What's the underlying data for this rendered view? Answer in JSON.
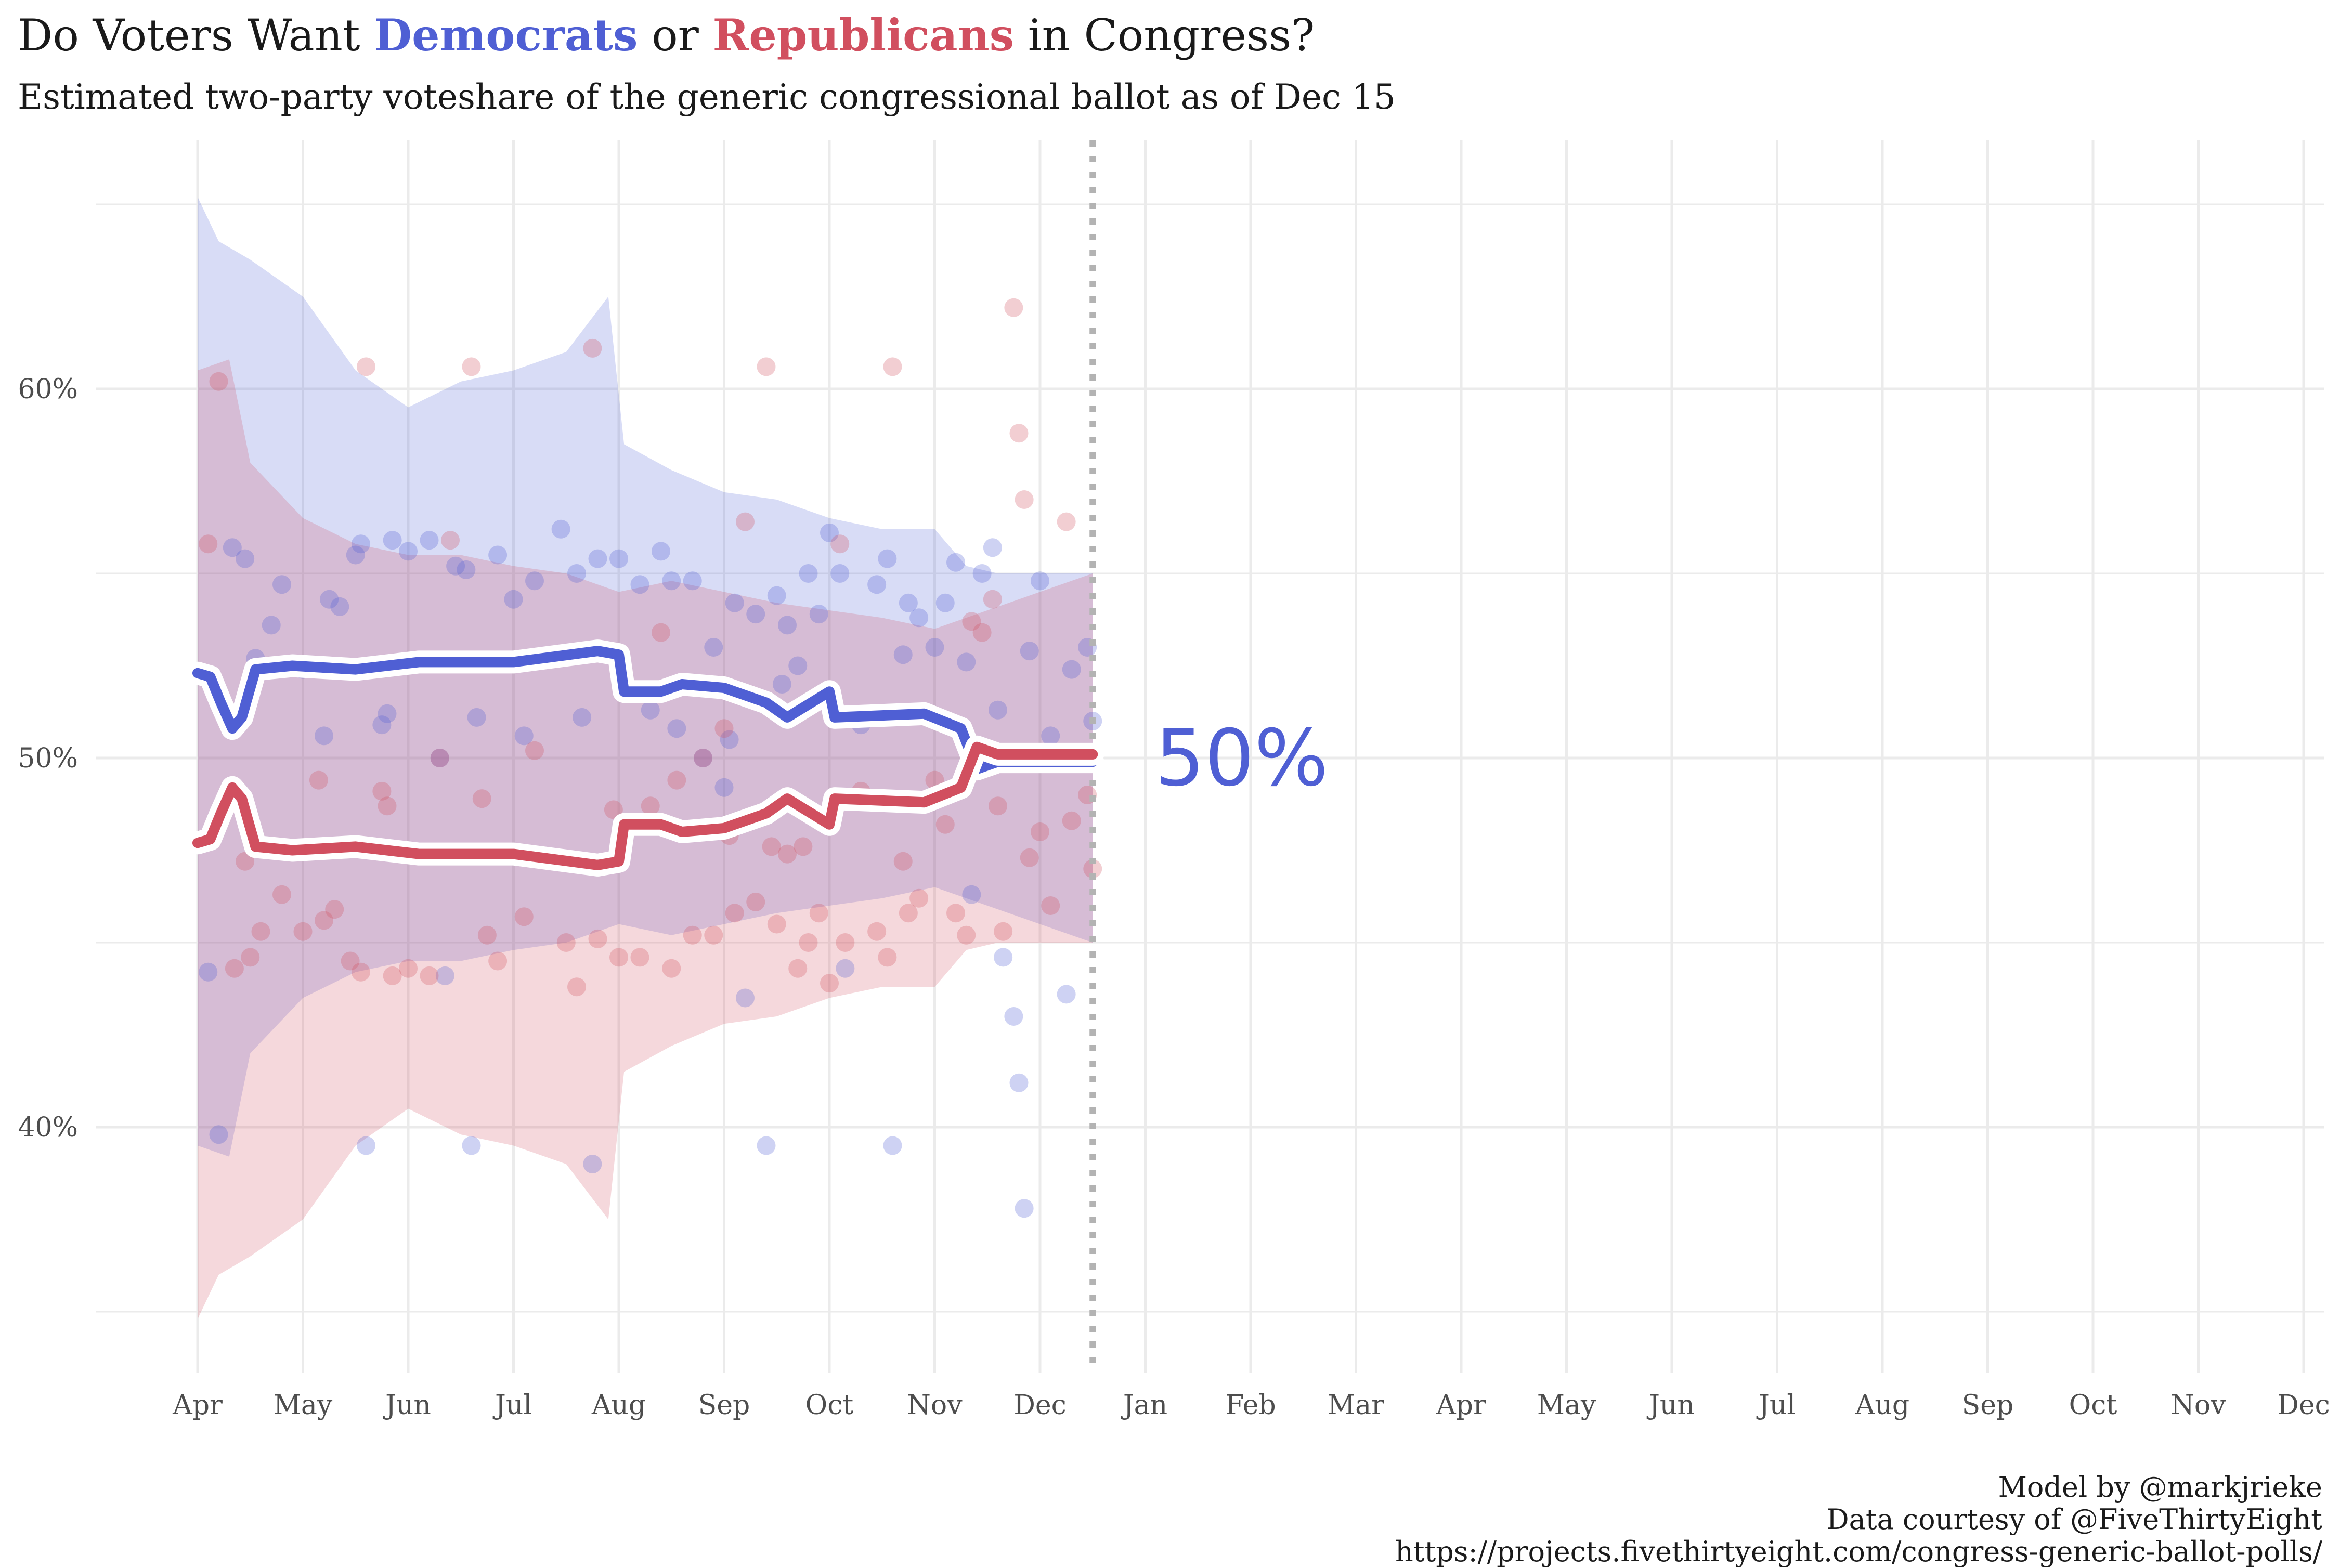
{
  "title": {
    "prefix": "Do Voters Want ",
    "dem": "Democrats",
    "mid": " or ",
    "rep": "Republicans",
    "suffix": " in Congress?"
  },
  "subtitle": "Estimated two-party voteshare of the generic congressional ballot as of Dec 15",
  "caption": [
    "Model by @markjrieke",
    "Data courtesy of @FiveThirtyEight",
    "https://projects.fivethirtyeight.com/congress-generic-ballot-polls/"
  ],
  "colors": {
    "dem": "#4f5fd4",
    "rep": "#d14f5f",
    "grid": "#ebebeb",
    "cutoff": "#b3b3b3"
  },
  "chart_data": {
    "type": "line",
    "x_months": [
      "Apr",
      "May",
      "Jun",
      "Jul",
      "Aug",
      "Sep",
      "Oct",
      "Nov",
      "Dec",
      "Jan",
      "Feb",
      "Mar",
      "Apr",
      "May",
      "Jun",
      "Jul",
      "Aug",
      "Sep",
      "Oct",
      "Nov",
      "Dec"
    ],
    "y_ticks": [
      40,
      50,
      60
    ],
    "y_tick_labels": [
      "40%",
      "50%",
      "60%"
    ],
    "ylim": [
      35,
      65
    ],
    "grid": true,
    "cutoff_month": 8.5,
    "current_label": "50%",
    "series": [
      {
        "name": "Democrats",
        "color": "#4f5fd4",
        "line": [
          [
            0,
            52.3
          ],
          [
            0.12,
            52.2
          ],
          [
            0.22,
            51.5
          ],
          [
            0.33,
            50.8
          ],
          [
            0.42,
            51.1
          ],
          [
            0.55,
            52.4
          ],
          [
            0.9,
            52.5
          ],
          [
            1.5,
            52.4
          ],
          [
            2.1,
            52.6
          ],
          [
            3.0,
            52.6
          ],
          [
            3.8,
            52.9
          ],
          [
            4.0,
            52.8
          ],
          [
            4.05,
            51.8
          ],
          [
            4.4,
            51.8
          ],
          [
            4.6,
            52.0
          ],
          [
            5.0,
            51.9
          ],
          [
            5.4,
            51.5
          ],
          [
            5.6,
            51.1
          ],
          [
            6.0,
            51.8
          ],
          [
            6.05,
            51.1
          ],
          [
            6.9,
            51.2
          ],
          [
            7.25,
            50.8
          ],
          [
            7.4,
            49.7
          ],
          [
            7.6,
            49.9
          ],
          [
            8.0,
            49.9
          ],
          [
            8.5,
            49.9
          ]
        ],
        "band_upper": [
          [
            0,
            65.2
          ],
          [
            0.2,
            64.0
          ],
          [
            0.5,
            63.5
          ],
          [
            1.0,
            62.5
          ],
          [
            1.5,
            60.5
          ],
          [
            2.0,
            59.5
          ],
          [
            2.5,
            60.2
          ],
          [
            3.0,
            60.5
          ],
          [
            3.5,
            61.0
          ],
          [
            3.9,
            62.5
          ],
          [
            4.05,
            58.5
          ],
          [
            4.5,
            57.8
          ],
          [
            5.0,
            57.2
          ],
          [
            5.5,
            57.0
          ],
          [
            6.0,
            56.5
          ],
          [
            6.5,
            56.2
          ],
          [
            7.0,
            56.2
          ],
          [
            7.3,
            55.2
          ],
          [
            7.6,
            55.0
          ],
          [
            8.0,
            55.0
          ],
          [
            8.5,
            55.0
          ]
        ],
        "band_lower": [
          [
            0,
            39.5
          ],
          [
            0.3,
            39.2
          ],
          [
            0.5,
            42.0
          ],
          [
            1.0,
            43.5
          ],
          [
            1.5,
            44.2
          ],
          [
            2.0,
            44.5
          ],
          [
            2.5,
            44.5
          ],
          [
            3.0,
            44.8
          ],
          [
            3.5,
            45.0
          ],
          [
            4.0,
            45.5
          ],
          [
            4.5,
            45.2
          ],
          [
            5.0,
            45.5
          ],
          [
            5.5,
            45.8
          ],
          [
            6.0,
            46.0
          ],
          [
            6.5,
            46.2
          ],
          [
            7.0,
            46.5
          ],
          [
            7.5,
            46.0
          ],
          [
            8.0,
            45.5
          ],
          [
            8.5,
            45.0
          ]
        ],
        "points": [
          [
            0.1,
            44.2
          ],
          [
            0.2,
            39.8
          ],
          [
            0.33,
            55.7
          ],
          [
            0.45,
            55.4
          ],
          [
            0.55,
            52.7
          ],
          [
            0.7,
            53.6
          ],
          [
            0.8,
            54.7
          ],
          [
            1.0,
            52.4
          ],
          [
            1.2,
            50.6
          ],
          [
            1.25,
            54.3
          ],
          [
            1.35,
            54.1
          ],
          [
            1.5,
            55.5
          ],
          [
            1.55,
            55.8
          ],
          [
            1.6,
            39.5
          ],
          [
            1.75,
            50.9
          ],
          [
            1.8,
            51.2
          ],
          [
            1.85,
            55.9
          ],
          [
            2.0,
            55.6
          ],
          [
            2.2,
            55.9
          ],
          [
            2.3,
            50.0
          ],
          [
            2.35,
            44.1
          ],
          [
            2.45,
            55.2
          ],
          [
            2.55,
            55.1
          ],
          [
            2.6,
            39.5
          ],
          [
            2.65,
            51.1
          ],
          [
            2.85,
            55.5
          ],
          [
            3.0,
            54.3
          ],
          [
            3.1,
            50.6
          ],
          [
            3.2,
            54.8
          ],
          [
            3.45,
            56.2
          ],
          [
            3.6,
            55.0
          ],
          [
            3.65,
            51.1
          ],
          [
            3.75,
            39.0
          ],
          [
            3.8,
            55.4
          ],
          [
            4.0,
            55.4
          ],
          [
            4.2,
            54.7
          ],
          [
            4.3,
            51.3
          ],
          [
            4.4,
            55.6
          ],
          [
            4.5,
            54.8
          ],
          [
            4.55,
            50.8
          ],
          [
            4.7,
            54.8
          ],
          [
            4.8,
            50.0
          ],
          [
            4.9,
            53.0
          ],
          [
            5.0,
            49.2
          ],
          [
            5.05,
            50.5
          ],
          [
            5.1,
            54.2
          ],
          [
            5.2,
            43.5
          ],
          [
            5.3,
            53.9
          ],
          [
            5.4,
            39.5
          ],
          [
            5.5,
            54.4
          ],
          [
            5.55,
            52.0
          ],
          [
            5.6,
            53.6
          ],
          [
            5.7,
            52.5
          ],
          [
            5.8,
            55.0
          ],
          [
            5.9,
            53.9
          ],
          [
            6.0,
            56.1
          ],
          [
            6.1,
            55.0
          ],
          [
            6.15,
            44.3
          ],
          [
            6.3,
            50.9
          ],
          [
            6.45,
            54.7
          ],
          [
            6.55,
            55.4
          ],
          [
            6.6,
            39.5
          ],
          [
            6.7,
            52.8
          ],
          [
            6.75,
            54.2
          ],
          [
            6.85,
            53.8
          ],
          [
            7.0,
            53.0
          ],
          [
            7.1,
            54.2
          ],
          [
            7.2,
            55.3
          ],
          [
            7.3,
            52.6
          ],
          [
            7.35,
            46.3
          ],
          [
            7.45,
            55.0
          ],
          [
            7.55,
            55.7
          ],
          [
            7.6,
            51.3
          ],
          [
            7.65,
            44.6
          ],
          [
            7.75,
            43.0
          ],
          [
            7.8,
            41.2
          ],
          [
            7.85,
            37.8
          ],
          [
            7.9,
            52.9
          ],
          [
            8.0,
            54.8
          ],
          [
            8.1,
            50.6
          ],
          [
            8.25,
            43.6
          ],
          [
            8.3,
            52.4
          ],
          [
            8.45,
            53.0
          ],
          [
            8.5,
            51.0
          ]
        ]
      },
      {
        "name": "Republicans",
        "color": "#d14f5f",
        "line": [
          [
            0,
            47.7
          ],
          [
            0.12,
            47.8
          ],
          [
            0.22,
            48.5
          ],
          [
            0.33,
            49.2
          ],
          [
            0.42,
            48.9
          ],
          [
            0.55,
            47.6
          ],
          [
            0.9,
            47.5
          ],
          [
            1.5,
            47.6
          ],
          [
            2.1,
            47.4
          ],
          [
            3.0,
            47.4
          ],
          [
            3.8,
            47.1
          ],
          [
            4.0,
            47.2
          ],
          [
            4.05,
            48.2
          ],
          [
            4.4,
            48.2
          ],
          [
            4.6,
            48.0
          ],
          [
            5.0,
            48.1
          ],
          [
            5.4,
            48.5
          ],
          [
            5.6,
            48.9
          ],
          [
            6.0,
            48.2
          ],
          [
            6.05,
            48.9
          ],
          [
            6.9,
            48.8
          ],
          [
            7.25,
            49.2
          ],
          [
            7.4,
            50.3
          ],
          [
            7.6,
            50.1
          ],
          [
            8.0,
            50.1
          ],
          [
            8.5,
            50.1
          ]
        ],
        "band_upper": [
          [
            0,
            60.5
          ],
          [
            0.3,
            60.8
          ],
          [
            0.5,
            58.0
          ],
          [
            1.0,
            56.5
          ],
          [
            1.5,
            55.8
          ],
          [
            2.0,
            55.5
          ],
          [
            2.5,
            55.5
          ],
          [
            3.0,
            55.2
          ],
          [
            3.5,
            55.0
          ],
          [
            4.0,
            54.5
          ],
          [
            4.5,
            54.8
          ],
          [
            5.0,
            54.5
          ],
          [
            5.5,
            54.2
          ],
          [
            6.0,
            54.0
          ],
          [
            6.5,
            53.8
          ],
          [
            7.0,
            53.5
          ],
          [
            7.5,
            54.0
          ],
          [
            8.0,
            54.5
          ],
          [
            8.5,
            55.0
          ]
        ],
        "band_lower": [
          [
            0,
            34.8
          ],
          [
            0.2,
            36.0
          ],
          [
            0.5,
            36.5
          ],
          [
            1.0,
            37.5
          ],
          [
            1.5,
            39.5
          ],
          [
            2.0,
            40.5
          ],
          [
            2.5,
            39.8
          ],
          [
            3.0,
            39.5
          ],
          [
            3.5,
            39.0
          ],
          [
            3.9,
            37.5
          ],
          [
            4.05,
            41.5
          ],
          [
            4.5,
            42.2
          ],
          [
            5.0,
            42.8
          ],
          [
            5.5,
            43.0
          ],
          [
            6.0,
            43.5
          ],
          [
            6.5,
            43.8
          ],
          [
            7.0,
            43.8
          ],
          [
            7.3,
            44.8
          ],
          [
            7.6,
            45.0
          ],
          [
            8.0,
            45.0
          ],
          [
            8.5,
            45.0
          ]
        ],
        "points": [
          [
            0.1,
            55.8
          ],
          [
            0.2,
            60.2
          ],
          [
            0.35,
            44.3
          ],
          [
            0.45,
            47.2
          ],
          [
            0.5,
            44.6
          ],
          [
            0.6,
            45.3
          ],
          [
            0.8,
            46.3
          ],
          [
            1.0,
            45.3
          ],
          [
            1.15,
            49.4
          ],
          [
            1.2,
            45.6
          ],
          [
            1.3,
            45.9
          ],
          [
            1.45,
            44.5
          ],
          [
            1.55,
            44.2
          ],
          [
            1.6,
            60.6
          ],
          [
            1.75,
            49.1
          ],
          [
            1.8,
            48.7
          ],
          [
            1.85,
            44.1
          ],
          [
            2.0,
            44.3
          ],
          [
            2.2,
            44.1
          ],
          [
            2.3,
            50.0
          ],
          [
            2.4,
            55.9
          ],
          [
            2.6,
            60.6
          ],
          [
            2.7,
            48.9
          ],
          [
            2.75,
            45.2
          ],
          [
            2.85,
            44.5
          ],
          [
            3.1,
            45.7
          ],
          [
            3.2,
            50.2
          ],
          [
            3.5,
            45.0
          ],
          [
            3.6,
            43.8
          ],
          [
            3.75,
            61.1
          ],
          [
            3.8,
            45.1
          ],
          [
            3.95,
            48.6
          ],
          [
            4.0,
            44.6
          ],
          [
            4.2,
            44.6
          ],
          [
            4.3,
            48.7
          ],
          [
            4.4,
            53.4
          ],
          [
            4.5,
            44.3
          ],
          [
            4.55,
            49.4
          ],
          [
            4.7,
            45.2
          ],
          [
            4.8,
            50.0
          ],
          [
            4.9,
            45.2
          ],
          [
            5.0,
            50.8
          ],
          [
            5.05,
            47.9
          ],
          [
            5.1,
            45.8
          ],
          [
            5.2,
            56.4
          ],
          [
            5.3,
            46.1
          ],
          [
            5.4,
            60.6
          ],
          [
            5.45,
            47.6
          ],
          [
            5.5,
            45.5
          ],
          [
            5.6,
            47.4
          ],
          [
            5.7,
            44.3
          ],
          [
            5.75,
            47.6
          ],
          [
            5.8,
            45.0
          ],
          [
            5.9,
            45.8
          ],
          [
            6.0,
            43.9
          ],
          [
            6.1,
            55.8
          ],
          [
            6.15,
            45.0
          ],
          [
            6.3,
            49.1
          ],
          [
            6.45,
            45.3
          ],
          [
            6.55,
            44.6
          ],
          [
            6.6,
            60.6
          ],
          [
            6.7,
            47.2
          ],
          [
            6.75,
            45.8
          ],
          [
            6.85,
            46.2
          ],
          [
            7.0,
            49.4
          ],
          [
            7.1,
            48.2
          ],
          [
            7.2,
            45.8
          ],
          [
            7.3,
            45.2
          ],
          [
            7.35,
            53.7
          ],
          [
            7.45,
            53.4
          ],
          [
            7.55,
            54.3
          ],
          [
            7.6,
            48.7
          ],
          [
            7.65,
            45.3
          ],
          [
            7.75,
            62.2
          ],
          [
            7.8,
            58.8
          ],
          [
            7.85,
            57.0
          ],
          [
            7.9,
            47.3
          ],
          [
            8.0,
            48.0
          ],
          [
            8.1,
            46.0
          ],
          [
            8.25,
            56.4
          ],
          [
            8.3,
            48.3
          ],
          [
            8.45,
            49.0
          ],
          [
            8.5,
            47.0
          ]
        ]
      }
    ]
  }
}
